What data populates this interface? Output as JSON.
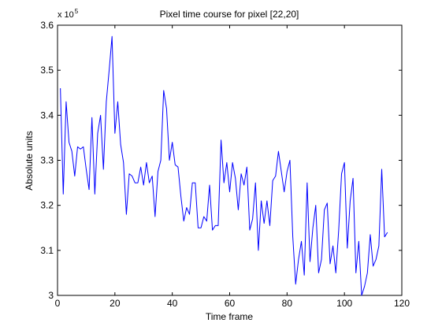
{
  "chart_data": {
    "type": "line",
    "title": "Pixel time course for pixel [22,20]",
    "xlabel": "Time frame",
    "ylabel": "Absolute units",
    "xlim": [
      0,
      120
    ],
    "ylim": [
      3.0,
      3.6
    ],
    "xticks": [
      "0",
      "20",
      "40",
      "60",
      "80",
      "100",
      "120"
    ],
    "yticks": [
      "3",
      "3.1",
      "3.2",
      "3.3",
      "3.4",
      "3.5",
      "3.6"
    ],
    "y_multiplier": {
      "base": "x 10",
      "exponent": "5"
    },
    "grid": false,
    "legend": "none",
    "line_color": "#0000ff",
    "x": [
      1,
      2,
      3,
      4,
      5,
      6,
      7,
      8,
      9,
      10,
      11,
      12,
      13,
      14,
      15,
      16,
      17,
      18,
      19,
      20,
      21,
      22,
      23,
      24,
      25,
      26,
      27,
      28,
      29,
      30,
      31,
      32,
      33,
      34,
      35,
      36,
      37,
      38,
      39,
      40,
      41,
      42,
      43,
      44,
      45,
      46,
      47,
      48,
      49,
      50,
      51,
      52,
      53,
      54,
      55,
      56,
      57,
      58,
      59,
      60,
      61,
      62,
      63,
      64,
      65,
      66,
      67,
      68,
      69,
      70,
      71,
      72,
      73,
      74,
      75,
      76,
      77,
      78,
      79,
      80,
      81,
      82,
      83,
      84,
      85,
      86,
      87,
      88,
      89,
      90,
      91,
      92,
      93,
      94,
      95,
      96,
      97,
      98,
      99,
      100,
      101,
      102,
      103,
      104,
      105,
      106,
      107,
      108,
      109,
      110,
      111,
      112,
      113,
      114,
      115
    ],
    "values": [
      3.46,
      3.225,
      3.43,
      3.34,
      3.32,
      3.265,
      3.33,
      3.325,
      3.33,
      3.28,
      3.235,
      3.395,
      3.225,
      3.36,
      3.4,
      3.28,
      3.43,
      3.5,
      3.575,
      3.36,
      3.43,
      3.335,
      3.295,
      3.18,
      3.27,
      3.265,
      3.25,
      3.25,
      3.285,
      3.245,
      3.295,
      3.25,
      3.265,
      3.175,
      3.275,
      3.3,
      3.455,
      3.415,
      3.3,
      3.34,
      3.29,
      3.285,
      3.22,
      3.165,
      3.195,
      3.18,
      3.25,
      3.25,
      3.15,
      3.15,
      3.175,
      3.165,
      3.245,
      3.145,
      3.155,
      3.155,
      3.345,
      3.25,
      3.295,
      3.23,
      3.295,
      3.26,
      3.19,
      3.27,
      3.245,
      3.285,
      3.145,
      3.17,
      3.25,
      3.1,
      3.21,
      3.16,
      3.21,
      3.155,
      3.255,
      3.265,
      3.32,
      3.275,
      3.23,
      3.275,
      3.3,
      3.13,
      3.025,
      3.08,
      3.12,
      3.045,
      3.25,
      3.075,
      3.15,
      3.2,
      3.05,
      3.08,
      3.19,
      3.205,
      3.07,
      3.11,
      3.05,
      3.145,
      3.27,
      3.295,
      3.105,
      3.21,
      3.26,
      3.05,
      3.12,
      3.0,
      3.02,
      3.05,
      3.135,
      3.065,
      3.08,
      3.11,
      3.28,
      3.13,
      3.14
    ]
  }
}
